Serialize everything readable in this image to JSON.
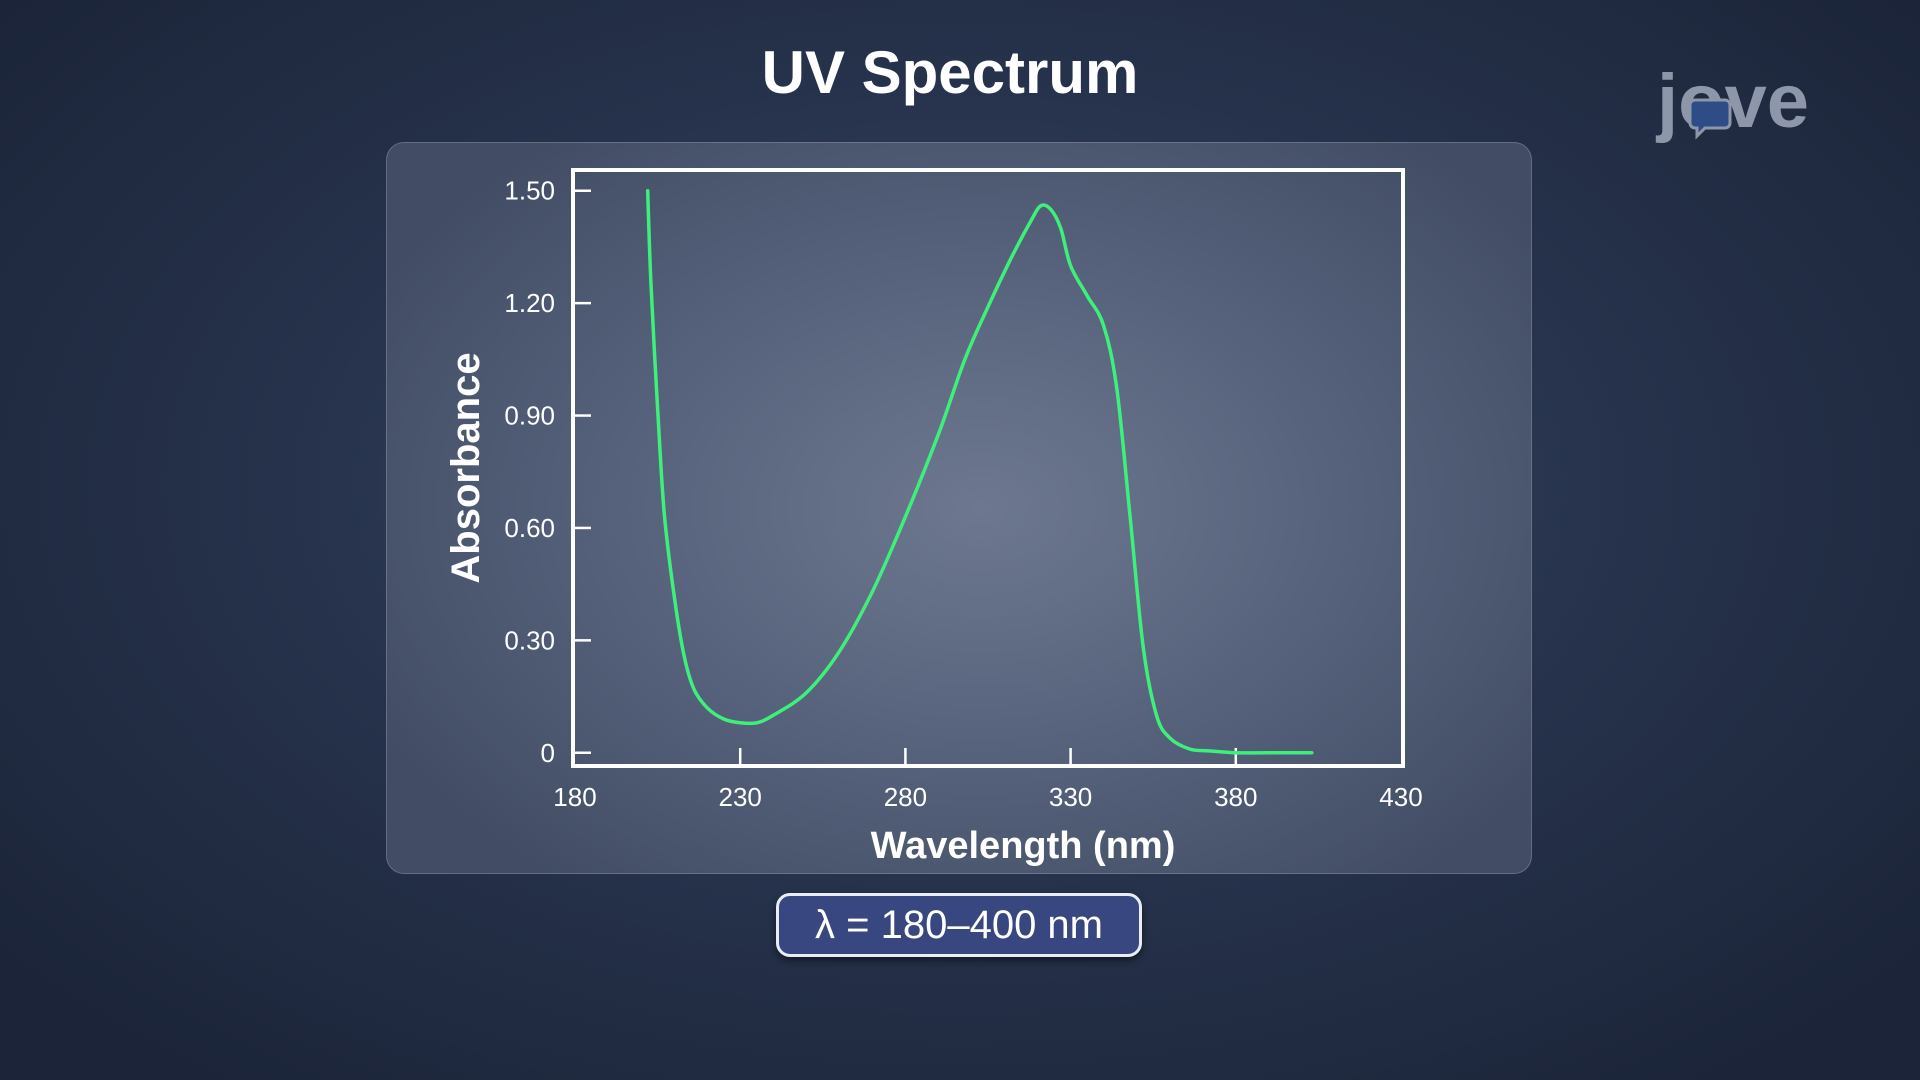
{
  "slide": {
    "title": "UV Spectrum",
    "badge": "λ = 180–400 nm",
    "logo_text": "jove"
  },
  "colors": {
    "curve": "#3df07a",
    "axes": "#ffffff",
    "badge_fill": "#38477f"
  },
  "chart_data": {
    "type": "line",
    "title": "",
    "xlabel": "Wavelength (nm)",
    "ylabel": "Absorbance",
    "xlim": [
      180,
      430
    ],
    "ylim": [
      -0.03,
      1.55
    ],
    "x_ticks": [
      180,
      230,
      280,
      330,
      380,
      430
    ],
    "x_tick_labels": [
      "180",
      "230",
      "280",
      "330",
      "380",
      "430"
    ],
    "y_ticks": [
      0,
      0.3,
      0.6,
      0.9,
      1.2,
      1.5
    ],
    "y_tick_labels": [
      "0",
      "0.30",
      "0.60",
      "0.90",
      "1.20",
      "1.50"
    ],
    "grid": false,
    "series": [
      {
        "color": "#3df07a",
        "x": [
          202,
          203,
          205,
          207,
          210,
          213,
          216,
          220,
          225,
          230,
          235,
          240,
          250,
          260,
          270,
          280,
          290,
          298,
          305,
          312,
          318,
          321,
          324,
          327,
          330,
          335,
          340,
          344,
          348,
          352,
          356,
          360,
          366,
          372,
          380,
          390,
          403
        ],
        "y": [
          1.5,
          1.25,
          0.92,
          0.64,
          0.42,
          0.26,
          0.17,
          0.12,
          0.09,
          0.08,
          0.08,
          0.1,
          0.16,
          0.27,
          0.43,
          0.63,
          0.85,
          1.05,
          1.19,
          1.32,
          1.42,
          1.46,
          1.45,
          1.4,
          1.3,
          1.22,
          1.14,
          0.97,
          0.63,
          0.28,
          0.1,
          0.04,
          0.01,
          0.005,
          0.0,
          0.0,
          0.0
        ]
      }
    ]
  }
}
